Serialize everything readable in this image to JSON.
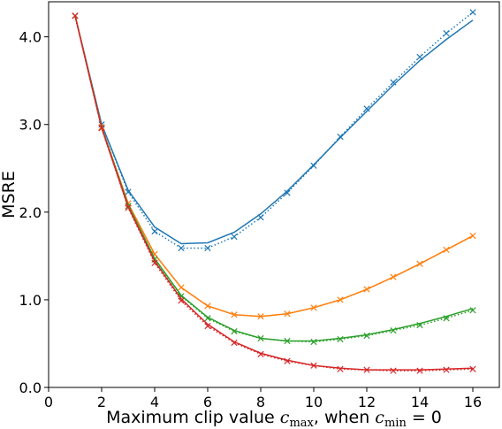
{
  "chart_data": {
    "type": "line",
    "title": "",
    "xlabel_text": "Maximum clip value ",
    "xlabel_math": "c",
    "xlabel_sub_max": "max",
    "xlabel_mid": ", when ",
    "xlabel_sub_min": "min",
    "xlabel_end": " = 0",
    "ylabel": "MSRE",
    "xlim": [
      0,
      17
    ],
    "ylim": [
      0,
      4.4
    ],
    "xticks": [
      0,
      2,
      4,
      6,
      8,
      10,
      12,
      14,
      16
    ],
    "xtick_labels": [
      "0",
      "2",
      "4",
      "6",
      "8",
      "10",
      "12",
      "14",
      "16"
    ],
    "yticks": [
      0.0,
      1.0,
      2.0,
      3.0,
      4.0
    ],
    "ytick_labels": [
      "0.0",
      "1.0",
      "2.0",
      "3.0",
      "4.0"
    ],
    "grid": false,
    "legend": false,
    "x": [
      1,
      2,
      3,
      4,
      5,
      6,
      7,
      8,
      9,
      10,
      11,
      12,
      13,
      14,
      15,
      16
    ],
    "series": [
      {
        "color": "#1f77b4",
        "solid": [
          4.24,
          3.0,
          2.25,
          1.83,
          1.64,
          1.65,
          1.77,
          1.98,
          2.24,
          2.54,
          2.85,
          3.15,
          3.45,
          3.73,
          3.97,
          4.19
        ],
        "dotted": [
          4.24,
          3.0,
          2.23,
          1.78,
          1.59,
          1.59,
          1.72,
          1.94,
          2.22,
          2.53,
          2.86,
          3.18,
          3.48,
          3.77,
          4.04,
          4.28
        ]
      },
      {
        "color": "#ff7f0e",
        "solid": [
          4.24,
          2.97,
          2.1,
          1.52,
          1.14,
          0.93,
          0.83,
          0.81,
          0.84,
          0.91,
          1.0,
          1.12,
          1.26,
          1.41,
          1.57,
          1.73
        ],
        "dotted": [
          4.24,
          2.97,
          2.1,
          1.52,
          1.14,
          0.93,
          0.83,
          0.81,
          0.84,
          0.91,
          1.0,
          1.12,
          1.26,
          1.41,
          1.57,
          1.73
        ]
      },
      {
        "color": "#2ca02c",
        "solid": [
          4.24,
          2.97,
          2.08,
          1.47,
          1.05,
          0.8,
          0.65,
          0.56,
          0.53,
          0.53,
          0.56,
          0.6,
          0.66,
          0.73,
          0.81,
          0.9
        ],
        "dotted": [
          4.24,
          2.96,
          2.07,
          1.46,
          1.04,
          0.79,
          0.64,
          0.56,
          0.53,
          0.52,
          0.55,
          0.59,
          0.65,
          0.71,
          0.79,
          0.88
        ]
      },
      {
        "color": "#d62728",
        "solid": [
          4.24,
          2.96,
          2.06,
          1.44,
          1.01,
          0.72,
          0.52,
          0.39,
          0.31,
          0.25,
          0.22,
          0.2,
          0.2,
          0.2,
          0.21,
          0.22
        ],
        "dotted": [
          4.24,
          2.96,
          2.05,
          1.42,
          0.99,
          0.7,
          0.51,
          0.38,
          0.3,
          0.25,
          0.21,
          0.2,
          0.19,
          0.19,
          0.2,
          0.21
        ]
      }
    ]
  }
}
